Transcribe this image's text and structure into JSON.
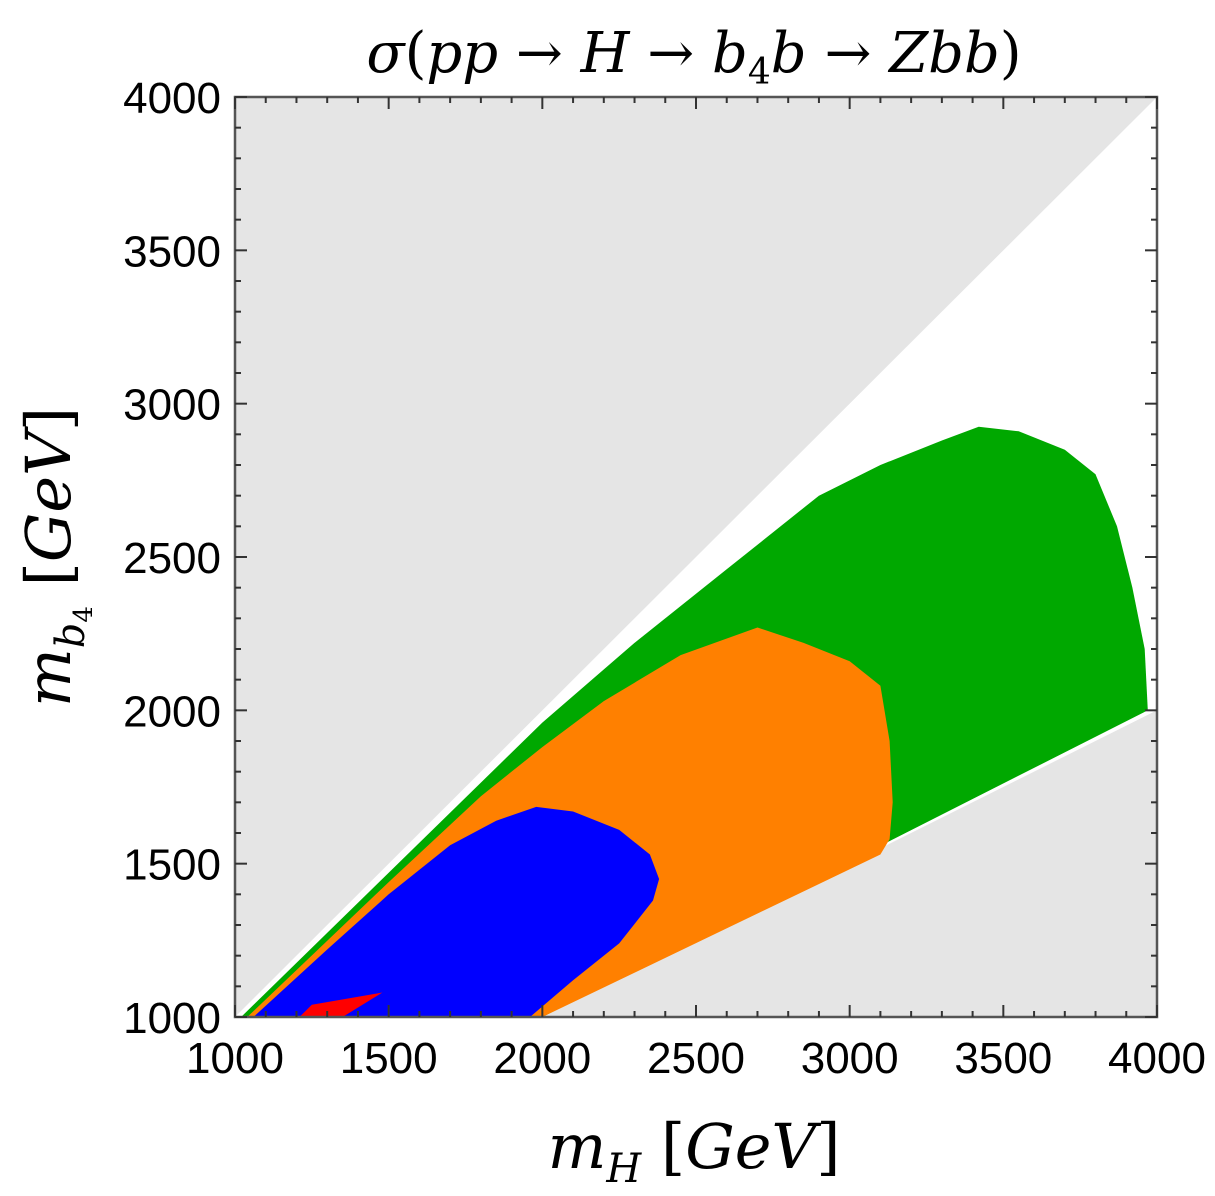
{
  "chart_data": {
    "type": "area",
    "title": "σ(pp → H → b₄b → Zbb)",
    "xlabel": "m_H [GeV]",
    "ylabel": "m_b4 [GeV]",
    "xlim": [
      1000,
      4000
    ],
    "ylim": [
      1000,
      4000
    ],
    "xticks": [
      "1000",
      "1500",
      "2000",
      "2500",
      "3000",
      "3500",
      "4000"
    ],
    "yticks": [
      "1000",
      "1500",
      "2000",
      "2500",
      "3000",
      "3500",
      "4000"
    ],
    "colors": {
      "excluded": "#e5e5e5",
      "green": "#00a800",
      "orange": "#ff8000",
      "blue": "#0000ff",
      "red": "#ff0000"
    },
    "excluded_regions": [
      {
        "name": "upper",
        "points": [
          [
            1000,
            1000
          ],
          [
            1000,
            4000
          ],
          [
            4000,
            4000
          ],
          [
            3990,
            3990
          ],
          [
            1000,
            1000
          ]
        ]
      },
      {
        "name": "lower",
        "points": [
          [
            2000,
            1000
          ],
          [
            4000,
            2000
          ],
          [
            4000,
            1000
          ]
        ]
      }
    ],
    "series": [
      {
        "color": "green",
        "points": [
          [
            1020,
            1000
          ],
          [
            2000,
            1960
          ],
          [
            2300,
            2220
          ],
          [
            2600,
            2460
          ],
          [
            2900,
            2700
          ],
          [
            3100,
            2800
          ],
          [
            3300,
            2880
          ],
          [
            3420,
            2925
          ],
          [
            3550,
            2910
          ],
          [
            3700,
            2850
          ],
          [
            3800,
            2770
          ],
          [
            3870,
            2600
          ],
          [
            3920,
            2400
          ],
          [
            3960,
            2200
          ],
          [
            3970,
            2000
          ],
          [
            2000,
            1000
          ]
        ]
      },
      {
        "color": "orange",
        "points": [
          [
            1040,
            1000
          ],
          [
            1500,
            1440
          ],
          [
            1800,
            1720
          ],
          [
            2000,
            1880
          ],
          [
            2200,
            2030
          ],
          [
            2450,
            2180
          ],
          [
            2700,
            2270
          ],
          [
            2850,
            2220
          ],
          [
            3000,
            2160
          ],
          [
            3100,
            2080
          ],
          [
            3130,
            1900
          ],
          [
            3140,
            1700
          ],
          [
            3130,
            1580
          ],
          [
            3100,
            1530
          ],
          [
            2000,
            1000
          ]
        ]
      },
      {
        "color": "blue",
        "points": [
          [
            1060,
            1000
          ],
          [
            1300,
            1220
          ],
          [
            1500,
            1400
          ],
          [
            1700,
            1560
          ],
          [
            1850,
            1640
          ],
          [
            1980,
            1685
          ],
          [
            2100,
            1670
          ],
          [
            2250,
            1610
          ],
          [
            2350,
            1530
          ],
          [
            2380,
            1450
          ],
          [
            2360,
            1380
          ],
          [
            2250,
            1240
          ],
          [
            2100,
            1120
          ],
          [
            1960,
            1000
          ]
        ]
      },
      {
        "color": "red",
        "points": [
          [
            1210,
            1000
          ],
          [
            1250,
            1040
          ],
          [
            1480,
            1080
          ],
          [
            1350,
            1000
          ]
        ]
      }
    ],
    "grid": false,
    "legend": "none"
  }
}
